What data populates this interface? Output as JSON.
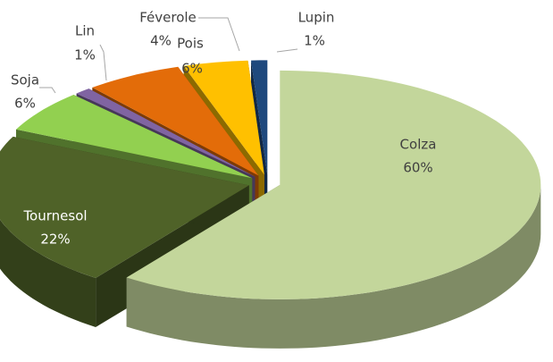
{
  "chart_data": {
    "type": "pie",
    "categories": [
      "Colza",
      "Tournesol",
      "Soja",
      "Lin",
      "Pois",
      "Féverole",
      "Lupin"
    ],
    "values": [
      60,
      22,
      6,
      1,
      6,
      4,
      1
    ],
    "value_labels": [
      "60%",
      "22%",
      "6%",
      "1%",
      "6%",
      "4%",
      "1%"
    ],
    "colors": [
      "#c3d69b",
      "#4f6228",
      "#92d050",
      "#8064a2",
      "#e36c09",
      "#ffc000",
      "#1f497d"
    ],
    "label_colors": [
      "#404040",
      "#ffffff",
      "#404040",
      "#404040",
      "#404040",
      "#404040",
      "#404040"
    ]
  }
}
